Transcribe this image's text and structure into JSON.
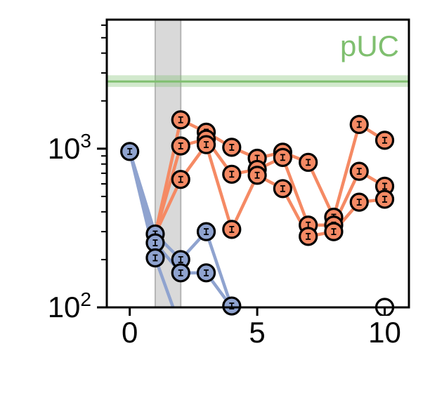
{
  "chart_data": {
    "type": "scatter",
    "title": "",
    "xlabel": "",
    "ylabel": "",
    "xlim": [
      -0.9,
      10.95
    ],
    "ylim": [
      100,
      6500
    ],
    "yscale": "log",
    "grid": false,
    "x_ticks": [
      {
        "value": 0,
        "label": "0"
      },
      {
        "value": 5,
        "label": "5"
      },
      {
        "value": 10,
        "label": "10"
      }
    ],
    "y_ticks": [
      {
        "value": 100,
        "base": "10",
        "exp": "2"
      },
      {
        "value": 1000,
        "base": "10",
        "exp": "3"
      }
    ],
    "shaded_x_band": {
      "x0": 1,
      "x1": 2,
      "color": "#d9d9d9"
    },
    "reference_line": {
      "label": "pUC",
      "y": 2650,
      "band": [
        2450,
        2900
      ],
      "color": "#7fbf6f"
    },
    "series": [
      {
        "color": "#8fa3cf",
        "lines": [
          [
            [
              0,
              960
            ],
            [
              1,
              290
            ]
          ],
          [
            [
              0,
              960
            ],
            [
              1,
              255
            ]
          ],
          [
            [
              0,
              960
            ],
            [
              1,
              205
            ]
          ],
          [
            [
              1,
              290
            ],
            [
              2,
              200
            ],
            [
              3,
              300
            ],
            [
              4,
              100
            ]
          ],
          [
            [
              1,
              255
            ],
            [
              2,
              165
            ],
            [
              3,
              165
            ],
            [
              4,
              100
            ]
          ],
          [
            [
              1,
              205
            ],
            [
              1.7,
              100
            ]
          ]
        ],
        "points": [
          [
            0,
            960
          ],
          [
            1,
            290
          ],
          [
            1,
            255
          ],
          [
            1,
            205
          ],
          [
            2,
            200
          ],
          [
            2,
            165
          ],
          [
            3,
            300
          ],
          [
            3,
            165
          ],
          [
            4,
            102
          ]
        ]
      },
      {
        "color": "#f58a64",
        "lines": [
          [
            [
              1,
              290
            ],
            [
              2,
              1520
            ],
            [
              3,
              1270
            ],
            [
              4,
              1020
            ],
            [
              5,
              870
            ],
            [
              6,
              950
            ],
            [
              7,
              820
            ],
            [
              8,
              370
            ],
            [
              9,
              1420
            ],
            [
              10,
              1130
            ]
          ],
          [
            [
              1,
              290
            ],
            [
              2,
              1040
            ],
            [
              3,
              1150
            ],
            [
              4,
              690
            ],
            [
              5,
              740
            ],
            [
              6,
              880
            ],
            [
              7,
              330
            ],
            [
              8,
              330
            ],
            [
              9,
              720
            ],
            [
              10,
              580
            ]
          ],
          [
            [
              1,
              290
            ],
            [
              2,
              640
            ],
            [
              3,
              1060
            ],
            [
              4,
              310
            ],
            [
              5,
              680
            ],
            [
              6,
              560
            ],
            [
              7,
              280
            ],
            [
              8,
              300
            ],
            [
              9,
              460
            ],
            [
              10,
              480
            ]
          ]
        ],
        "points": [
          [
            2,
            1520
          ],
          [
            2,
            1040
          ],
          [
            2,
            640
          ],
          [
            3,
            1270
          ],
          [
            3,
            1150
          ],
          [
            3,
            1060
          ],
          [
            4,
            1020
          ],
          [
            4,
            690
          ],
          [
            4,
            310
          ],
          [
            5,
            870
          ],
          [
            5,
            740
          ],
          [
            5,
            680
          ],
          [
            6,
            950
          ],
          [
            6,
            880
          ],
          [
            6,
            560
          ],
          [
            7,
            820
          ],
          [
            7,
            330
          ],
          [
            7,
            280
          ],
          [
            8,
            370
          ],
          [
            8,
            330
          ],
          [
            8,
            300
          ],
          [
            9,
            1420
          ],
          [
            9,
            720
          ],
          [
            9,
            460
          ],
          [
            10,
            1130
          ],
          [
            10,
            580
          ],
          [
            10,
            480
          ]
        ]
      },
      {
        "color": "#ffffff",
        "lines": [],
        "points": [
          [
            10,
            100
          ]
        ]
      }
    ]
  }
}
